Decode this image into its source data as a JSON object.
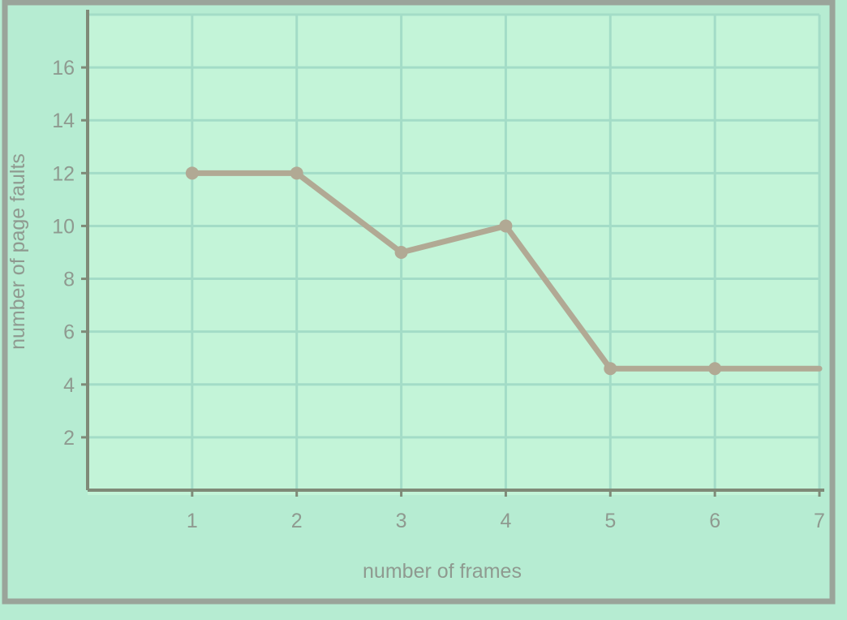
{
  "colors": {
    "background": "#b6ecd2",
    "plot_background": "#c3f4d8",
    "grid": "#a3dcc7",
    "axis": "#7f8a78",
    "frame": "#9aa49a",
    "series": "#b1a994",
    "text": "#8f9a90"
  },
  "chart_data": {
    "type": "line",
    "xlabel": "number of frames",
    "ylabel": "number of page faults",
    "xlim": [
      0,
      7
    ],
    "ylim": [
      0,
      18
    ],
    "x_ticks": [
      "1",
      "2",
      "3",
      "4",
      "5",
      "6",
      "7"
    ],
    "y_ticks": [
      "2",
      "4",
      "6",
      "8",
      "10",
      "12",
      "14",
      "16"
    ],
    "grid": true,
    "legend": "none",
    "series": [
      {
        "x": [
          1,
          2,
          3,
          4,
          5,
          6,
          7
        ],
        "y": [
          12,
          12,
          9,
          10,
          4.6,
          4.6,
          4.6
        ],
        "markers": [
          true,
          true,
          true,
          true,
          true,
          true,
          false
        ]
      }
    ]
  }
}
